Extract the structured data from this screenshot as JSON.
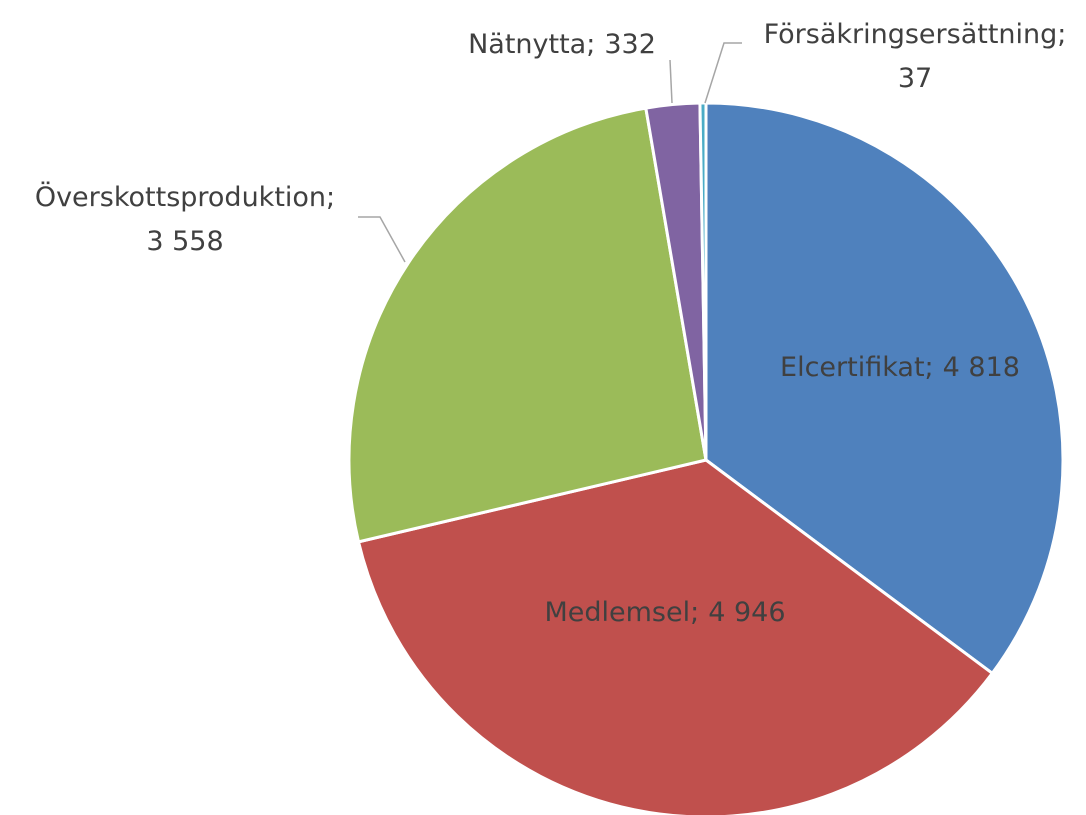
{
  "chart_data": {
    "type": "pie",
    "categories": [
      "Elcertifikat",
      "Medlemsel",
      "Överskottsproduktion",
      "Nätnytta",
      "Försäkringsersättning"
    ],
    "values": [
      4818,
      4946,
      3558,
      332,
      37
    ],
    "value_labels": [
      "4 818",
      "4 946",
      "3 558",
      "332",
      "37"
    ],
    "label_separator": ";",
    "colors": [
      "#4f81bd",
      "#c0504d",
      "#9bbb59",
      "#8064a2",
      "#4bacc6"
    ]
  }
}
